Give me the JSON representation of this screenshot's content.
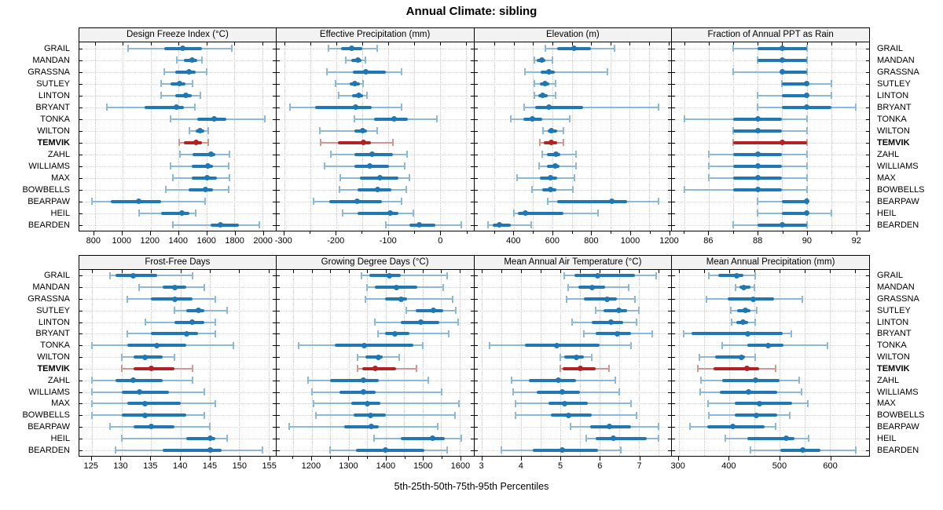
{
  "title": "Annual Climate: sibling",
  "caption": "5th-25th-50th-75th-95th Percentiles",
  "stations": [
    "GRAIL",
    "MANDAN",
    "GRASSNA",
    "SUTLEY",
    "LINTON",
    "BRYANT",
    "TONKA",
    "WILTON",
    "TEMVIK",
    "ZAHL",
    "WILLIAMS",
    "MAX",
    "BOWBELLS",
    "BEARPAW",
    "HEIL",
    "BEARDEN"
  ],
  "highlight_station": "TEMVIK",
  "percentile_labels": [
    "5th",
    "25th",
    "50th",
    "75th",
    "95th"
  ],
  "colors": {
    "series_blue": "#1f77b4",
    "series_blue_light": "#8db9d8",
    "series_red": "#b22222",
    "series_red_light": "#d9948c",
    "header_bg": "#f2f2f2",
    "grid": "#c9c9c9",
    "border": "#000000"
  },
  "chart_data": [
    {
      "type": "dot-interval",
      "title": "Design Freeze Index (°C)",
      "band": "top",
      "domain": [
        690,
        2095
      ],
      "ticks": [
        800,
        1000,
        1200,
        1400,
        1600,
        1800,
        2000
      ],
      "minor_ticks": [],
      "grid": [
        800,
        1000,
        1200,
        1400,
        1600,
        1800,
        2000
      ],
      "values": [
        [
          1040,
          1300,
          1430,
          1570,
          1780
        ],
        [
          1385,
          1440,
          1500,
          1535,
          1565
        ],
        [
          1300,
          1375,
          1475,
          1520,
          1600
        ],
        [
          1275,
          1340,
          1405,
          1450,
          1500
        ],
        [
          1275,
          1375,
          1455,
          1495,
          1555
        ],
        [
          885,
          1155,
          1385,
          1440,
          1515
        ],
        [
          1345,
          1535,
          1655,
          1740,
          2015
        ],
        [
          1475,
          1520,
          1555,
          1585,
          1610
        ],
        [
          1405,
          1440,
          1525,
          1570,
          1610
        ],
        [
          1410,
          1500,
          1630,
          1665,
          1765
        ],
        [
          1340,
          1495,
          1610,
          1645,
          1760
        ],
        [
          1360,
          1495,
          1605,
          1675,
          1765
        ],
        [
          1310,
          1470,
          1595,
          1645,
          1760
        ],
        [
          780,
          915,
          1115,
          1275,
          1590
        ],
        [
          1120,
          1275,
          1425,
          1480,
          1525
        ],
        [
          1360,
          1630,
          1700,
          1830,
          1980
        ]
      ]
    },
    {
      "type": "dot-interval",
      "title": "Effective Precipitation (mm)",
      "band": "top",
      "domain": [
        -315,
        65
      ],
      "ticks": [
        -300,
        -200,
        -100,
        0
      ],
      "minor_ticks": [
        -250,
        -150,
        -50,
        50
      ],
      "grid": [
        -300,
        -250,
        -200,
        -150,
        -100,
        -50,
        0,
        50
      ],
      "values": [
        [
          -215,
          -190,
          -170,
          -150,
          -120
        ],
        [
          -182,
          -171,
          -158,
          -151,
          -143
        ],
        [
          -217,
          -167,
          -143,
          -104,
          -73
        ],
        [
          -201,
          -174,
          -164,
          -154,
          -148
        ],
        [
          -195,
          -169,
          -157,
          -148,
          -141
        ],
        [
          -289,
          -240,
          -162,
          -132,
          -73
        ],
        [
          -165,
          -126,
          -88,
          -61,
          -6
        ],
        [
          -231,
          -164,
          -149,
          -141,
          -120
        ],
        [
          -230,
          -196,
          -147,
          -133,
          -91
        ],
        [
          -210,
          -165,
          -131,
          -91,
          -63
        ],
        [
          -222,
          -164,
          -135,
          -98,
          -68
        ],
        [
          -192,
          -154,
          -115,
          -79,
          -59
        ],
        [
          -194,
          -158,
          -120,
          -93,
          -64
        ],
        [
          -244,
          -213,
          -160,
          -111,
          -74
        ],
        [
          -188,
          -159,
          -96,
          -80,
          -51
        ],
        [
          -104,
          -59,
          -39,
          -8,
          41
        ]
      ]
    },
    {
      "type": "dot-interval",
      "title": "Elevation (m)",
      "band": "top",
      "domain": [
        195,
        1215
      ],
      "ticks": [
        400,
        600,
        800,
        1000,
        1200
      ],
      "minor_ticks": [
        300,
        500,
        700,
        900,
        1100
      ],
      "grid": [
        300,
        400,
        500,
        600,
        700,
        800,
        900,
        1000,
        1100,
        1200
      ],
      "values": [
        [
          565,
          625,
          710,
          800,
          920
        ],
        [
          505,
          520,
          545,
          565,
          600
        ],
        [
          458,
          540,
          580,
          610,
          885
        ],
        [
          505,
          535,
          560,
          585,
          615
        ],
        [
          505,
          525,
          550,
          575,
          615
        ],
        [
          455,
          510,
          580,
          760,
          1150
        ],
        [
          385,
          450,
          495,
          545,
          690
        ],
        [
          550,
          575,
          595,
          625,
          655
        ],
        [
          535,
          555,
          593,
          625,
          655
        ],
        [
          545,
          570,
          620,
          640,
          720
        ],
        [
          530,
          570,
          615,
          635,
          720
        ],
        [
          415,
          535,
          590,
          625,
          715
        ],
        [
          495,
          548,
          590,
          620,
          705
        ],
        [
          575,
          625,
          905,
          985,
          1150
        ],
        [
          400,
          420,
          458,
          655,
          835
        ],
        [
          265,
          290,
          325,
          385,
          490
        ]
      ]
    },
    {
      "type": "dot-interval",
      "title": "Fraction of Annual PPT as Rain",
      "band": "top",
      "domain": [
        84.5,
        92.55
      ],
      "ticks": [
        86,
        88,
        90,
        92
      ],
      "minor_ticks": [
        85,
        87,
        89,
        91
      ],
      "grid": [
        85,
        86,
        87,
        88,
        89,
        90,
        91,
        92
      ],
      "values": [
        [
          87,
          88,
          89,
          90,
          90
        ],
        [
          88,
          88,
          89,
          90,
          90
        ],
        [
          87,
          89,
          89,
          90,
          90
        ],
        [
          89,
          89,
          90,
          90,
          91
        ],
        [
          88,
          89,
          90,
          90,
          91
        ],
        [
          88,
          89,
          90,
          91,
          92
        ],
        [
          85,
          87,
          88,
          89,
          90
        ],
        [
          87,
          87,
          88,
          89,
          90
        ],
        [
          87,
          87,
          89,
          90,
          90
        ],
        [
          86,
          87,
          88,
          89,
          90
        ],
        [
          86,
          87,
          88,
          89,
          90
        ],
        [
          86,
          87,
          88,
          89,
          90
        ],
        [
          85,
          87,
          88,
          89,
          90
        ],
        [
          88,
          89,
          90,
          90,
          90
        ],
        [
          88,
          89,
          90,
          90,
          91
        ],
        [
          87,
          88,
          89,
          90,
          90
        ]
      ]
    },
    {
      "type": "dot-interval",
      "title": "Frost-Free Days",
      "band": "bottom",
      "domain": [
        122.8,
        156.2
      ],
      "ticks": [
        125,
        130,
        135,
        140,
        145,
        150,
        155
      ],
      "minor_ticks": [],
      "grid": [
        125,
        130,
        135,
        140,
        145,
        150,
        155
      ],
      "values": [
        [
          128,
          129,
          132,
          136,
          142
        ],
        [
          133,
          137,
          139,
          141,
          144
        ],
        [
          131,
          135,
          139,
          142,
          146
        ],
        [
          139,
          141,
          143,
          144,
          148
        ],
        [
          134,
          139,
          142,
          144,
          146
        ],
        [
          131,
          135,
          141,
          143,
          146
        ],
        [
          125,
          131,
          136,
          141,
          149
        ],
        [
          130,
          132,
          134,
          137,
          139
        ],
        [
          130,
          132,
          135,
          139,
          142
        ],
        [
          125,
          129,
          132,
          137,
          142
        ],
        [
          125,
          130,
          133,
          138,
          144
        ],
        [
          125,
          131,
          134,
          140,
          146
        ],
        [
          125,
          130,
          134,
          141,
          144
        ],
        [
          128,
          132,
          135,
          139,
          145
        ],
        [
          130,
          141,
          145,
          146,
          148
        ],
        [
          129,
          137,
          145,
          147,
          154
        ]
      ]
    },
    {
      "type": "dot-interval",
      "title": "Growing Degree Days (°C)",
      "band": "bottom",
      "domain": [
        1105,
        1637
      ],
      "ticks": [
        1200,
        1300,
        1400,
        1500,
        1600
      ],
      "minor_ticks": [
        1150,
        1250,
        1350,
        1450,
        1550
      ],
      "grid": [
        1150,
        1200,
        1250,
        1300,
        1350,
        1400,
        1450,
        1500,
        1550,
        1600
      ],
      "values": [
        [
          1335,
          1355,
          1410,
          1440,
          1565
        ],
        [
          1350,
          1370,
          1430,
          1485,
          1555
        ],
        [
          1345,
          1398,
          1442,
          1458,
          1580
        ],
        [
          1455,
          1480,
          1528,
          1555,
          1590
        ],
        [
          1370,
          1440,
          1495,
          1545,
          1595
        ],
        [
          1380,
          1398,
          1425,
          1465,
          1570
        ],
        [
          1165,
          1262,
          1343,
          1475,
          1500
        ],
        [
          1325,
          1345,
          1380,
          1392,
          1437
        ],
        [
          1325,
          1336,
          1371,
          1428,
          1483
        ],
        [
          1190,
          1250,
          1341,
          1382,
          1515
        ],
        [
          1200,
          1276,
          1339,
          1373,
          1552
        ],
        [
          1205,
          1308,
          1351,
          1385,
          1598
        ],
        [
          1211,
          1313,
          1359,
          1400,
          1588
        ],
        [
          1140,
          1288,
          1361,
          1382,
          1540
        ],
        [
          1368,
          1440,
          1527,
          1559,
          1605
        ],
        [
          1250,
          1320,
          1400,
          1505,
          1565
        ]
      ]
    },
    {
      "type": "dot-interval",
      "title": "Mean Annual Air Temperature (°C)",
      "band": "bottom",
      "domain": [
        2.8,
        7.83
      ],
      "ticks": [
        3,
        4,
        5,
        6,
        7
      ],
      "minor_ticks": [],
      "grid": [
        3,
        3.5,
        4,
        4.5,
        5,
        5.5,
        6,
        6.5,
        7,
        7.5
      ],
      "values": [
        [
          5.1,
          5.35,
          5.95,
          6.9,
          7.45
        ],
        [
          5.2,
          5.45,
          5.8,
          6.15,
          6.75
        ],
        [
          5.15,
          5.6,
          6.2,
          6.45,
          6.9
        ],
        [
          5.9,
          6.1,
          6.5,
          6.7,
          7.0
        ],
        [
          5.3,
          5.8,
          6.3,
          6.6,
          6.95
        ],
        [
          5.6,
          5.9,
          6.45,
          6.8,
          7.35
        ],
        [
          3.2,
          4.1,
          4.9,
          6.0,
          6.8
        ],
        [
          5.0,
          5.1,
          5.4,
          5.6,
          5.8
        ],
        [
          5.0,
          5.05,
          5.5,
          5.9,
          6.25
        ],
        [
          3.75,
          4.2,
          4.95,
          5.4,
          6.4
        ],
        [
          3.8,
          4.4,
          5.05,
          5.5,
          6.5
        ],
        [
          3.85,
          4.7,
          5.1,
          5.7,
          6.8
        ],
        [
          3.85,
          4.75,
          5.2,
          5.8,
          6.95
        ],
        [
          5.25,
          5.75,
          6.25,
          6.8,
          7.5
        ],
        [
          5.65,
          5.9,
          6.35,
          7.2,
          7.5
        ],
        [
          3.5,
          4.3,
          5.05,
          5.95,
          6.55
        ]
      ]
    },
    {
      "type": "dot-interval",
      "title": "Mean Annual Precipitation (mm)",
      "band": "bottom",
      "domain": [
        287,
        678
      ],
      "ticks": [
        300,
        400,
        500,
        600
      ],
      "minor_ticks": [],
      "grid": [
        300,
        350,
        400,
        450,
        500,
        550,
        600,
        650
      ],
      "values": [
        [
          360,
          378,
          415,
          428,
          452
        ],
        [
          413,
          420,
          430,
          442,
          450
        ],
        [
          355,
          398,
          448,
          490,
          545
        ],
        [
          403,
          416,
          432,
          442,
          455
        ],
        [
          405,
          415,
          427,
          438,
          452
        ],
        [
          310,
          325,
          437,
          507,
          523
        ],
        [
          387,
          437,
          478,
          508,
          595
        ],
        [
          341,
          372,
          425,
          432,
          452
        ],
        [
          338,
          370,
          436,
          460,
          493
        ],
        [
          344,
          386,
          452,
          500,
          540
        ],
        [
          342,
          382,
          438,
          496,
          544
        ],
        [
          358,
          412,
          460,
          525,
          556
        ],
        [
          360,
          412,
          455,
          496,
          521
        ],
        [
          323,
          357,
          407,
          471,
          493
        ],
        [
          392,
          437,
          513,
          530,
          558
        ],
        [
          443,
          502,
          546,
          582,
          651
        ]
      ]
    }
  ]
}
